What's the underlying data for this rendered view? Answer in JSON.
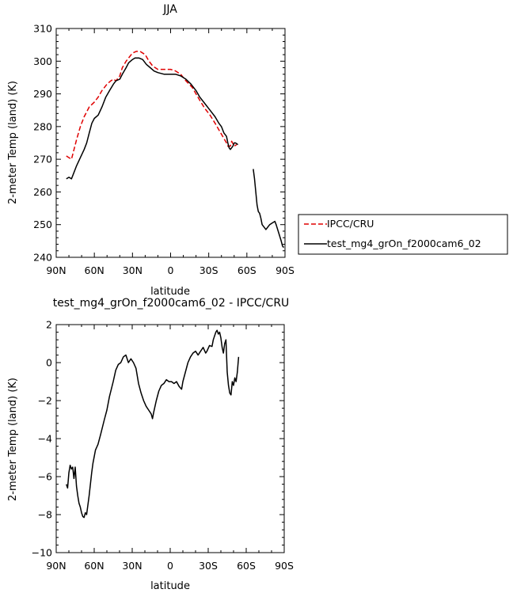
{
  "chart_data": [
    {
      "type": "line",
      "title": "JJA",
      "xlabel": "latitude",
      "ylabel": "2-meter Temp (land) (K)",
      "xlim": [
        90,
        -90
      ],
      "ylim": [
        240,
        310
      ],
      "xticks": [
        90,
        60,
        30,
        0,
        -30,
        -60,
        -90
      ],
      "xtick_labels": [
        "90N",
        "60N",
        "30N",
        "0",
        "30S",
        "60S",
        "90S"
      ],
      "yticks": [
        240,
        250,
        260,
        270,
        280,
        290,
        300,
        310
      ],
      "ytick_labels": [
        "240",
        "250",
        "260",
        "270",
        "280",
        "290",
        "300",
        "310"
      ],
      "legend_position": "right",
      "series": [
        {
          "name": "IPCC/CRU",
          "color": "#e00000",
          "dash": "dashed",
          "segments": [
            [
              [
                82,
                271
              ],
              [
                80,
                270.5
              ],
              [
                78,
                270
              ],
              [
                76,
                273
              ],
              [
                74,
                276
              ],
              [
                71,
                280
              ],
              [
                68,
                283
              ],
              [
                64,
                286
              ],
              [
                60,
                287.5
              ],
              [
                57,
                289
              ],
              [
                54,
                291
              ],
              [
                50,
                293
              ],
              [
                47,
                294
              ],
              [
                45,
                294.5
              ],
              [
                43,
                294
              ],
              [
                40,
                295.5
              ],
              [
                38,
                298
              ],
              [
                35,
                300
              ],
              [
                33,
                301
              ],
              [
                30,
                302.5
              ],
              [
                27,
                303
              ],
              [
                24,
                303
              ],
              [
                20,
                302
              ],
              [
                17,
                300
              ],
              [
                14,
                298.5
              ],
              [
                10,
                297.5
              ],
              [
                5,
                297.5
              ],
              [
                0,
                297.5
              ],
              [
                -4,
                297
              ],
              [
                -8,
                296
              ],
              [
                -12,
                294
              ],
              [
                -17,
                292
              ],
              [
                -20,
                290
              ],
              [
                -23,
                288
              ],
              [
                -27,
                285.5
              ],
              [
                -31,
                283.5
              ],
              [
                -35,
                281
              ],
              [
                -38,
                279
              ],
              [
                -41,
                277
              ],
              [
                -44,
                275
              ],
              [
                -45,
                274
              ],
              [
                -47,
                274
              ],
              [
                -48,
                275.5
              ],
              [
                -50,
                274
              ],
              [
                -52,
                274.5
              ]
            ]
          ]
        },
        {
          "name": "test_mg4_grOn_f2000cam6_02",
          "color": "#000000",
          "dash": "solid",
          "segments": [
            [
              [
                82,
                264
              ],
              [
                80,
                264.5
              ],
              [
                78,
                264
              ],
              [
                76,
                266
              ],
              [
                74,
                268
              ],
              [
                71,
                270.5
              ],
              [
                68,
                273
              ],
              [
                66,
                275
              ],
              [
                64,
                278
              ],
              [
                62,
                281
              ],
              [
                60,
                282.5
              ],
              [
                57,
                283.5
              ],
              [
                54,
                286
              ],
              [
                51,
                289
              ],
              [
                48,
                291
              ],
              [
                45,
                293
              ],
              [
                43,
                294
              ],
              [
                40,
                294.5
              ],
              [
                38,
                296
              ],
              [
                35,
                298
              ],
              [
                33,
                299.5
              ],
              [
                30,
                300.5
              ],
              [
                28,
                301
              ],
              [
                25,
                301
              ],
              [
                22,
                300.5
              ],
              [
                19,
                299
              ],
              [
                16,
                298
              ],
              [
                13,
                297
              ],
              [
                10,
                296.5
              ],
              [
                5,
                296
              ],
              [
                0,
                296
              ],
              [
                -4,
                296
              ],
              [
                -8,
                295.5
              ],
              [
                -12,
                294.5
              ],
              [
                -16,
                293
              ],
              [
                -20,
                291
              ],
              [
                -23,
                289
              ],
              [
                -27,
                287
              ],
              [
                -31,
                285
              ],
              [
                -35,
                283
              ],
              [
                -38,
                281
              ],
              [
                -40,
                280
              ],
              [
                -42,
                278
              ],
              [
                -44,
                277
              ],
              [
                -45,
                275
              ],
              [
                -46,
                273.5
              ],
              [
                -47,
                273
              ],
              [
                -49,
                274
              ],
              [
                -50,
                275
              ],
              [
                -51,
                275
              ],
              [
                -53,
                274.5
              ]
            ],
            [
              [
                -65,
                267
              ],
              [
                -66,
                264
              ],
              [
                -67,
                260
              ],
              [
                -68,
                256
              ],
              [
                -69,
                254
              ],
              [
                -70,
                253.5
              ],
              [
                -71,
                252
              ],
              [
                -72,
                250
              ],
              [
                -74,
                249
              ],
              [
                -75,
                248.5
              ],
              [
                -76,
                249
              ],
              [
                -78,
                250
              ],
              [
                -80,
                250.5
              ],
              [
                -82,
                251
              ],
              [
                -83,
                250
              ],
              [
                -85,
                247.5
              ],
              [
                -87,
                245
              ],
              [
                -88,
                243.5
              ],
              [
                -89,
                243
              ]
            ]
          ]
        }
      ]
    },
    {
      "type": "line",
      "title": "test_mg4_grOn_f2000cam6_02 - IPCC/CRU",
      "xlabel": "latitude",
      "ylabel": "2-meter Temp (land) (K)",
      "xlim": [
        90,
        -90
      ],
      "ylim": [
        -10,
        2
      ],
      "xticks": [
        90,
        60,
        30,
        0,
        -30,
        -60,
        -90
      ],
      "xtick_labels": [
        "90N",
        "60N",
        "30N",
        "0",
        "30S",
        "60S",
        "90S"
      ],
      "yticks": [
        -10,
        -8,
        -6,
        -4,
        -2,
        0,
        2
      ],
      "ytick_labels": [
        "−10",
        "−8",
        "−6",
        "−4",
        "−2",
        "0",
        "2"
      ],
      "series": [
        {
          "name": "",
          "color": "#000000",
          "dash": "solid",
          "segments": [
            [
              [
                82,
                -6.4
              ],
              [
                81,
                -6.6
              ],
              [
                80,
                -5.8
              ],
              [
                79,
                -5.4
              ],
              [
                78,
                -5.6
              ],
              [
                77,
                -5.5
              ],
              [
                76,
                -6.1
              ],
              [
                75,
                -5.5
              ],
              [
                74,
                -6.5
              ],
              [
                73,
                -7.0
              ],
              [
                72,
                -7.4
              ],
              [
                71,
                -7.6
              ],
              [
                70,
                -7.9
              ],
              [
                69,
                -8.1
              ],
              [
                68,
                -8.15
              ],
              [
                67,
                -7.9
              ],
              [
                66,
                -8.0
              ],
              [
                64,
                -7.0
              ],
              [
                62,
                -5.8
              ],
              [
                61,
                -5.3
              ],
              [
                59,
                -4.6
              ],
              [
                57,
                -4.3
              ],
              [
                55,
                -3.8
              ],
              [
                52,
                -3.0
              ],
              [
                50,
                -2.5
              ],
              [
                48,
                -1.8
              ],
              [
                45,
                -1.0
              ],
              [
                43,
                -0.4
              ],
              [
                41,
                -0.1
              ],
              [
                39,
                0.0
              ],
              [
                37,
                0.3
              ],
              [
                35,
                0.4
              ],
              [
                33,
                0.0
              ],
              [
                31,
                0.2
              ],
              [
                29,
                0.0
              ],
              [
                27,
                -0.3
              ],
              [
                25,
                -1.1
              ],
              [
                23,
                -1.6
              ],
              [
                21,
                -2.0
              ],
              [
                19,
                -2.3
              ],
              [
                17,
                -2.5
              ],
              [
                15,
                -2.7
              ],
              [
                14,
                -2.95
              ],
              [
                13,
                -2.6
              ],
              [
                11,
                -2.0
              ],
              [
                9,
                -1.5
              ],
              [
                7,
                -1.2
              ],
              [
                5,
                -1.1
              ],
              [
                3,
                -0.9
              ],
              [
                1,
                -1.0
              ],
              [
                -1,
                -1.0
              ],
              [
                -3,
                -1.1
              ],
              [
                -5,
                -1.0
              ],
              [
                -7,
                -1.25
              ],
              [
                -9,
                -1.4
              ],
              [
                -10,
                -1.0
              ],
              [
                -12,
                -0.5
              ],
              [
                -14,
                0.0
              ],
              [
                -16,
                0.3
              ],
              [
                -18,
                0.5
              ],
              [
                -20,
                0.6
              ],
              [
                -22,
                0.4
              ],
              [
                -24,
                0.6
              ],
              [
                -26,
                0.8
              ],
              [
                -28,
                0.5
              ],
              [
                -29,
                0.6
              ],
              [
                -31,
                0.9
              ],
              [
                -33,
                0.85
              ],
              [
                -34,
                1.2
              ],
              [
                -36,
                1.6
              ],
              [
                -37,
                1.7
              ],
              [
                -38,
                1.5
              ],
              [
                -39,
                1.6
              ],
              [
                -40,
                1.3
              ],
              [
                -41,
                0.8
              ],
              [
                -42,
                0.5
              ],
              [
                -43,
                1.0
              ],
              [
                -44,
                1.2
              ],
              [
                -45,
                -0.5
              ],
              [
                -46,
                -1.2
              ],
              [
                -47,
                -1.6
              ],
              [
                -48,
                -1.7
              ],
              [
                -49,
                -1.0
              ],
              [
                -50,
                -1.2
              ],
              [
                -51,
                -0.8
              ],
              [
                -52,
                -1.0
              ],
              [
                -53,
                -0.5
              ],
              [
                -54,
                0.3
              ]
            ]
          ]
        }
      ]
    }
  ]
}
